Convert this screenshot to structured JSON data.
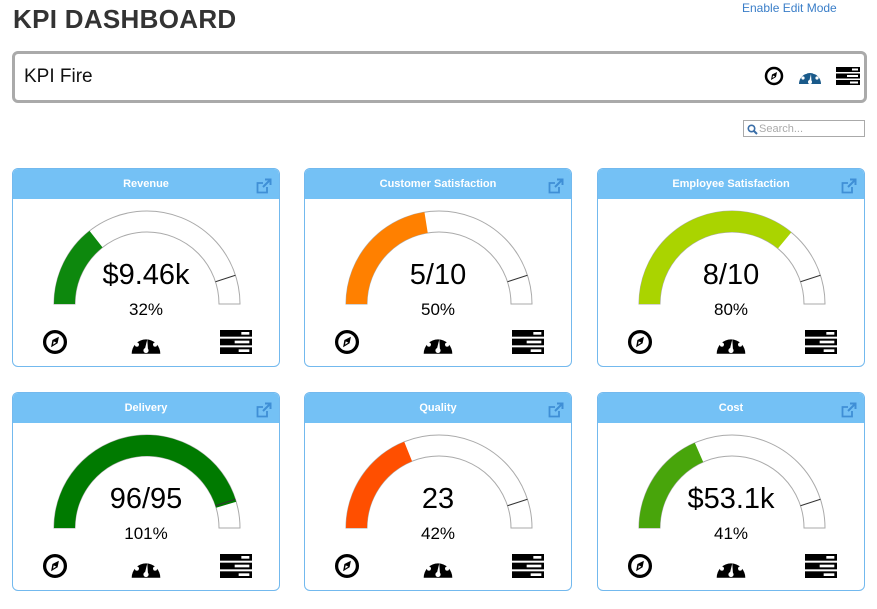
{
  "header": {
    "title": "KPI DASHBOARD",
    "edit_link": "Enable Edit Mode"
  },
  "kpi_bar": {
    "name": "KPI Fire",
    "icons": [
      "compass-icon",
      "dashboard-icon",
      "list-icon"
    ],
    "active_icon_color": "#1a5a8a"
  },
  "search": {
    "placeholder": "Search...",
    "value": ""
  },
  "cards": [
    {
      "title": "Revenue",
      "value": "$9.46k",
      "percent_label": "32%",
      "percent": 32,
      "color": "#0d880d"
    },
    {
      "title": "Customer Satisfaction",
      "value": "5/10",
      "percent_label": "50%",
      "percent": 50,
      "color": "#ff8000"
    },
    {
      "title": "Employee Satisfaction",
      "value": "8/10",
      "percent_label": "80%",
      "percent": 80,
      "color": "#aad400"
    },
    {
      "title": "Delivery",
      "value": "96/95",
      "percent_label": "101%",
      "percent": 101,
      "color": "#007a00"
    },
    {
      "title": "Quality",
      "value": "23",
      "percent_label": "42%",
      "percent": 42,
      "color": "#ff4f00"
    },
    {
      "title": "Cost",
      "value": "$53.1k",
      "percent_label": "41%",
      "percent": 41,
      "color": "#48a50b"
    }
  ],
  "gauge": {
    "target_percent": 100,
    "target_fraction_of_arc": 0.9
  }
}
